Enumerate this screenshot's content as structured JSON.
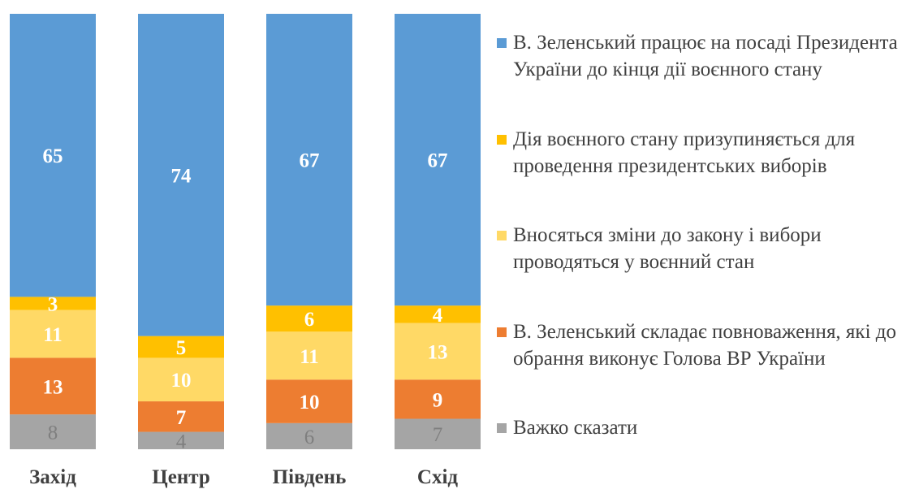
{
  "chart_data": {
    "type": "bar",
    "stacked": "percent",
    "categories": [
      "Захід",
      "Центр",
      "Південь",
      "Схід"
    ],
    "ylim": [
      0,
      100
    ],
    "series": [
      {
        "name": "Важко сказати",
        "color": "#a5a5a5",
        "label_color": "#7f7f7f",
        "values": [
          8,
          4,
          6,
          7
        ]
      },
      {
        "name": "В. Зеленський складає повноваження, які до обрання виконує Голова ВР України",
        "color": "#ed7d31",
        "label_color": "#ffffff",
        "values": [
          13,
          7,
          10,
          9
        ]
      },
      {
        "name": "Вносяться зміни до закону і вибори проводяться у воєнний стан",
        "color": "#ffd966",
        "label_color": "#ffffff",
        "values": [
          11,
          10,
          11,
          13
        ]
      },
      {
        "name": "Дія воєнного стану призупиняється для проведення президентських виборів",
        "color": "#ffc000",
        "label_color": "#ffffff",
        "values": [
          3,
          5,
          6,
          4
        ]
      },
      {
        "name": "В. Зеленський працює на посаді Президента України до кінця дії воєнного стану",
        "color": "#5b9bd5",
        "label_color": "#ffffff",
        "values": [
          65,
          74,
          67,
          67
        ]
      }
    ],
    "legend": {
      "position": "right",
      "order": [
        4,
        3,
        2,
        1,
        0
      ]
    }
  }
}
